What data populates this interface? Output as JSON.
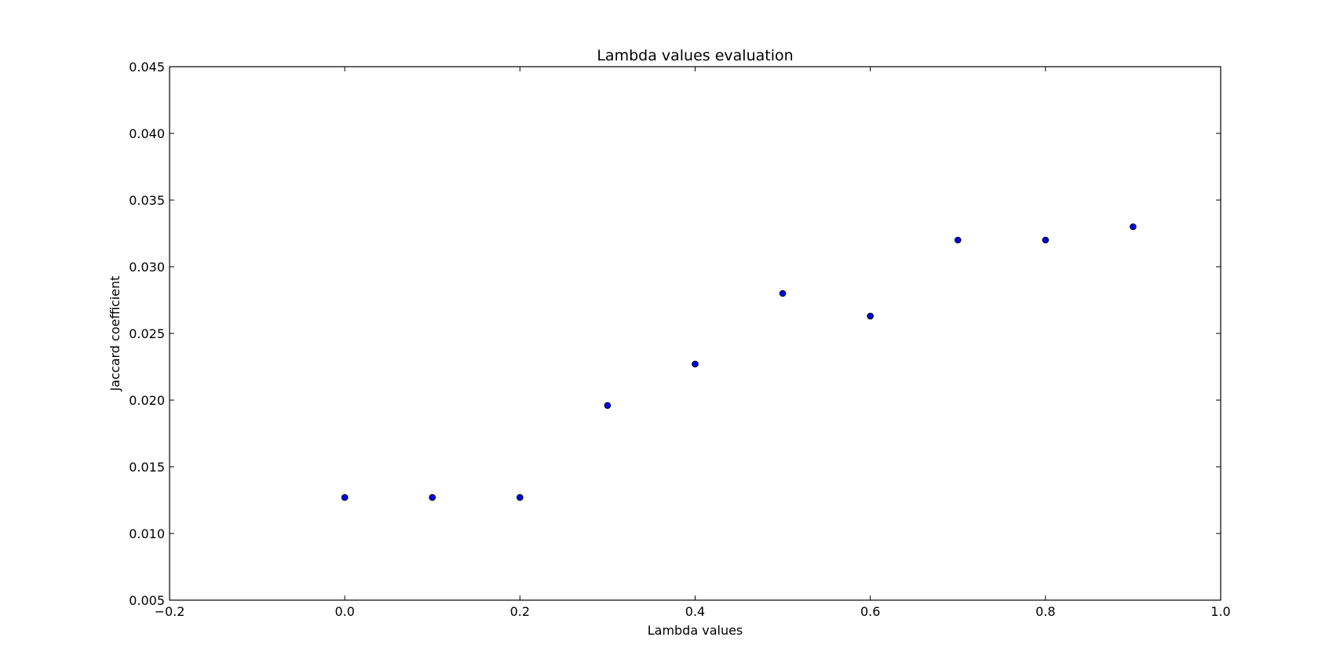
{
  "chart_data": {
    "type": "scatter",
    "title": "Lambda values evaluation",
    "xlabel": "Lambda values",
    "ylabel": "Jaccard coefficient",
    "xlim": [
      -0.2,
      1.0
    ],
    "ylim": [
      0.005,
      0.045
    ],
    "xticks": [
      -0.2,
      0.0,
      0.2,
      0.4,
      0.6,
      0.8,
      1.0
    ],
    "xtick_labels": [
      "−0.2",
      "0.0",
      "0.2",
      "0.4",
      "0.6",
      "0.8",
      "1.0"
    ],
    "yticks": [
      0.005,
      0.01,
      0.015,
      0.02,
      0.025,
      0.03,
      0.035,
      0.04,
      0.045
    ],
    "ytick_labels": [
      "0.005",
      "0.010",
      "0.015",
      "0.020",
      "0.025",
      "0.030",
      "0.035",
      "0.040",
      "0.045"
    ],
    "grid": false,
    "series": [
      {
        "x": [
          0.0,
          0.1,
          0.2,
          0.3,
          0.4,
          0.5,
          0.6,
          0.7,
          0.8,
          0.9
        ],
        "y": [
          0.0127,
          0.0127,
          0.0127,
          0.0196,
          0.0227,
          0.028,
          0.0263,
          0.032,
          0.032,
          0.033
        ],
        "color": "#0000ff"
      }
    ]
  }
}
